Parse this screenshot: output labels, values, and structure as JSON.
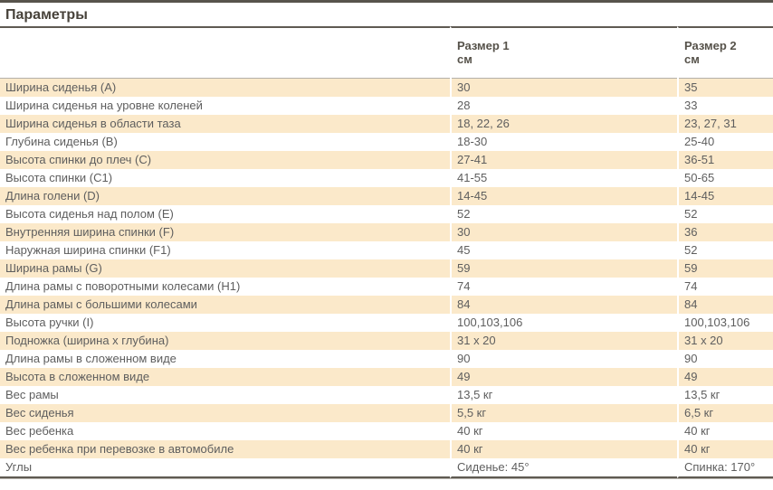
{
  "page": {
    "title": "Параметры"
  },
  "table": {
    "columns": [
      {
        "label": "Размер 1",
        "unit": "см"
      },
      {
        "label": "Размер 2",
        "unit": "см"
      }
    ],
    "rows": [
      {
        "label": "Ширина сиденья (А)",
        "size1": "30",
        "size2": "35"
      },
      {
        "label": "Ширина сиденья на уровне коленей",
        "size1": "28",
        "size2": "33"
      },
      {
        "label": "Ширина сиденья в области таза",
        "size1": "18, 22, 26",
        "size2": "23, 27, 31"
      },
      {
        "label": "Глубина сиденья (B)",
        "size1": "18-30",
        "size2": "25-40"
      },
      {
        "label": "Высота спинки до плеч (C)",
        "size1": "27-41",
        "size2": "36-51"
      },
      {
        "label": "Высота спинки (C1)",
        "size1": "41-55",
        "size2": "50-65"
      },
      {
        "label": "Длина голени (D)",
        "size1": "14-45",
        "size2": "14-45"
      },
      {
        "label": "Высота сиденья над полом (E)",
        "size1": "52",
        "size2": "52"
      },
      {
        "label": "Внутренняя ширина спинки (F)",
        "size1": "30",
        "size2": "36"
      },
      {
        "label": "Наружная ширина спинки (F1)",
        "size1": "45",
        "size2": "52"
      },
      {
        "label": "Ширина рамы (G)",
        "size1": "59",
        "size2": "59"
      },
      {
        "label": "Длина рамы с поворотными колесами (H1)",
        "size1": "74",
        "size2": "74"
      },
      {
        "label": "Длина рамы с большими колесами",
        "size1": "84",
        "size2": "84"
      },
      {
        "label": "Высота ручки (I)",
        "size1": "100,103,106",
        "size2": "100,103,106"
      },
      {
        "label": "Подножка (ширина x глубина)",
        "size1": "31 x 20",
        "size2": "31 x 20"
      },
      {
        "label": "Длина рамы в сложенном виде",
        "size1": "90",
        "size2": "90"
      },
      {
        "label": "Высота в сложенном виде",
        "size1": "49",
        "size2": "49"
      },
      {
        "label": "Вес рамы",
        "size1": "13,5 кг",
        "size2": "13,5 кг"
      },
      {
        "label": "Вес сиденья",
        "size1": "5,5 кг",
        "size2": "6,5 кг"
      },
      {
        "label": "Вес ребенка",
        "size1": "40 кг",
        "size2": "40 кг"
      },
      {
        "label": "Вес ребенка при перевозке в автомобиле",
        "size1": "40 кг",
        "size2": "40 кг"
      },
      {
        "label": "Углы",
        "size1": "Сиденье: 45°",
        "size2": "Спинка: 170°"
      }
    ],
    "colors": {
      "highlight": "#fbe9ca",
      "rule": "#5f5a52",
      "text": "#5e5e5e"
    }
  }
}
